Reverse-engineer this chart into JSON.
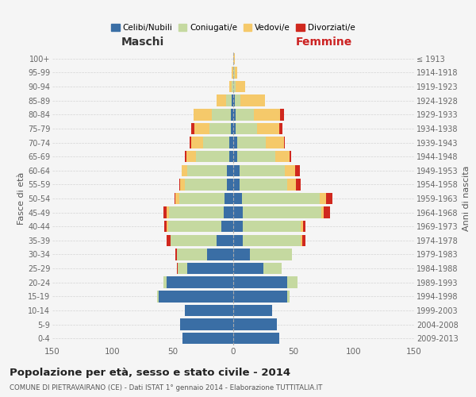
{
  "age_groups": [
    "0-4",
    "5-9",
    "10-14",
    "15-19",
    "20-24",
    "25-29",
    "30-34",
    "35-39",
    "40-44",
    "45-49",
    "50-54",
    "55-59",
    "60-64",
    "65-69",
    "70-74",
    "75-79",
    "80-84",
    "85-89",
    "90-94",
    "95-99",
    "100+"
  ],
  "birth_years": [
    "2009-2013",
    "2004-2008",
    "1999-2003",
    "1994-1998",
    "1989-1993",
    "1984-1988",
    "1979-1983",
    "1974-1978",
    "1969-1973",
    "1964-1968",
    "1959-1963",
    "1954-1958",
    "1949-1953",
    "1944-1948",
    "1939-1943",
    "1934-1938",
    "1929-1933",
    "1924-1928",
    "1919-1923",
    "1914-1918",
    "≤ 1913"
  ],
  "colors": {
    "celibi": "#3a6ea5",
    "coniugati": "#c5d9a0",
    "vedovi": "#f5c96a",
    "divorziati": "#d0281e"
  },
  "males": {
    "celibi": [
      42,
      44,
      40,
      62,
      55,
      38,
      22,
      14,
      10,
      8,
      7,
      5,
      5,
      3,
      3,
      2,
      2,
      1,
      0,
      0,
      0
    ],
    "coniugati": [
      0,
      0,
      0,
      1,
      3,
      8,
      25,
      38,
      44,
      45,
      38,
      35,
      33,
      28,
      22,
      18,
      16,
      5,
      1,
      0,
      0
    ],
    "vedovi": [
      0,
      0,
      0,
      0,
      0,
      0,
      0,
      0,
      1,
      2,
      3,
      4,
      5,
      8,
      10,
      12,
      15,
      8,
      2,
      1,
      0
    ],
    "divorziati": [
      0,
      0,
      0,
      0,
      0,
      1,
      1,
      3,
      2,
      3,
      1,
      1,
      0,
      1,
      1,
      3,
      0,
      0,
      0,
      0,
      0
    ]
  },
  "females": {
    "celibi": [
      38,
      36,
      32,
      45,
      45,
      25,
      14,
      8,
      8,
      8,
      7,
      5,
      5,
      3,
      3,
      2,
      2,
      1,
      0,
      0,
      0
    ],
    "coniugati": [
      0,
      0,
      0,
      2,
      8,
      15,
      35,
      48,
      48,
      65,
      65,
      40,
      38,
      32,
      24,
      18,
      15,
      5,
      2,
      1,
      0
    ],
    "vedovi": [
      0,
      0,
      0,
      0,
      0,
      0,
      0,
      1,
      2,
      2,
      5,
      7,
      8,
      12,
      15,
      18,
      22,
      20,
      8,
      2,
      1
    ],
    "divorziati": [
      0,
      0,
      0,
      0,
      0,
      0,
      0,
      3,
      2,
      5,
      5,
      4,
      4,
      1,
      1,
      3,
      3,
      0,
      0,
      0,
      0
    ]
  },
  "title": "Popolazione per età, sesso e stato civile - 2014",
  "subtitle": "COMUNE DI PIETRAVAIRANO (CE) - Dati ISTAT 1° gennaio 2014 - Elaborazione TUTTITALIA.IT",
  "xlabel_left": "Maschi",
  "xlabel_right": "Femmine",
  "ylabel_left": "Fasce di età",
  "ylabel_right": "Anni di nascita",
  "xlim": 150,
  "legend_labels": [
    "Celibi/Nubili",
    "Coniugati/e",
    "Vedovi/e",
    "Divorziati/e"
  ],
  "bg_color": "#f5f5f5",
  "grid_color": "#cccccc"
}
